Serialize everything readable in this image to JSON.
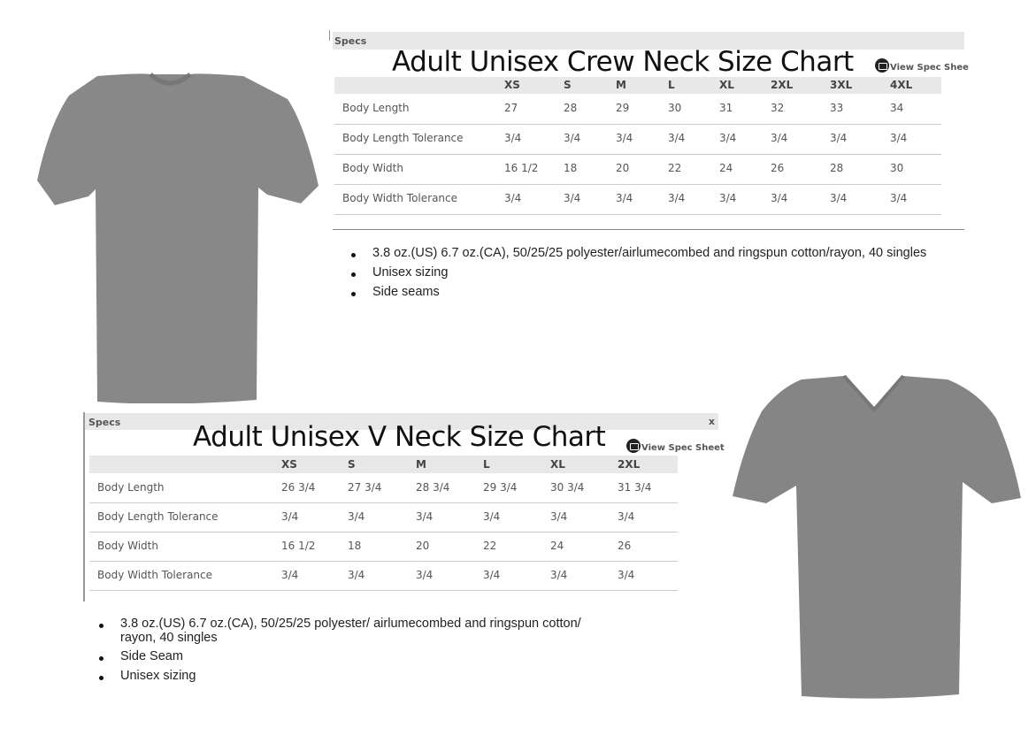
{
  "crew": {
    "specs_label": "Specs",
    "title": "Adult Unisex Crew Neck Size Chart",
    "view_spec": "View Spec Shee",
    "sizes": [
      "XS",
      "S",
      "M",
      "L",
      "XL",
      "2XL",
      "3XL",
      "4XL"
    ],
    "rows": [
      {
        "label": "Body Length",
        "values": [
          "27",
          "28",
          "29",
          "30",
          "31",
          "32",
          "33",
          "34"
        ]
      },
      {
        "label": "Body Length Tolerance",
        "values": [
          "3/4",
          "3/4",
          "3/4",
          "3/4",
          "3/4",
          "3/4",
          "3/4",
          "3/4"
        ]
      },
      {
        "label": "Body Width",
        "values": [
          "16 1/2",
          "18",
          "20",
          "22",
          "24",
          "26",
          "28",
          "30"
        ]
      },
      {
        "label": "Body Width Tolerance",
        "values": [
          "3/4",
          "3/4",
          "3/4",
          "3/4",
          "3/4",
          "3/4",
          "3/4",
          "3/4"
        ]
      }
    ],
    "bullets": [
      "3.8 oz.(US) 6.7 oz.(CA), 50/25/25 polyester/airlumecombed and ringspun cotton/rayon, 40 singles",
      "Unisex sizing",
      "Side seams"
    ],
    "shirt_color": "#8a8a8a"
  },
  "vneck": {
    "specs_label": "Specs",
    "close_label": "x",
    "title": "Adult Unisex V Neck Size Chart",
    "view_spec": "View Spec Sheet",
    "sizes": [
      "XS",
      "S",
      "M",
      "L",
      "XL",
      "2XL"
    ],
    "rows": [
      {
        "label": "Body Length",
        "values": [
          "26 3/4",
          "27 3/4",
          "28 3/4",
          "29 3/4",
          "30 3/4",
          "31 3/4"
        ]
      },
      {
        "label": "Body Length Tolerance",
        "values": [
          "3/4",
          "3/4",
          "3/4",
          "3/4",
          "3/4",
          "3/4"
        ]
      },
      {
        "label": "Body Width",
        "values": [
          "16 1/2",
          "18",
          "20",
          "22",
          "24",
          "26"
        ]
      },
      {
        "label": "Body Width Tolerance",
        "values": [
          "3/4",
          "3/4",
          "3/4",
          "3/4",
          "3/4",
          "3/4"
        ]
      }
    ],
    "bullets": [
      "3.8 oz.(US) 6.7 oz.(CA), 50/25/25 polyester/ airlumecombed and ringspun cotton/",
      "rayon, 40 singles",
      "Side Seam",
      "Unisex sizing"
    ],
    "shirt_color": "#858585"
  }
}
